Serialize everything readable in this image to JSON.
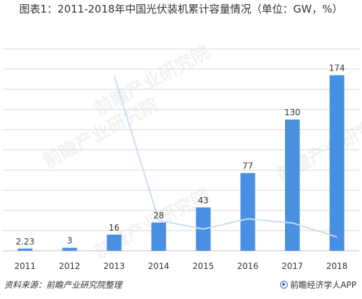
{
  "title": "图表1：2011-2018年中国光伏装机累计容量情况（单位：GW，%）",
  "source": "资料来源：前瞻产业研究院整理",
  "brand": "前瞻经济学人APP",
  "watermark": "前瞻产业研究院",
  "colors": {
    "bar": "#4a90e2",
    "line": "#c9ddf0",
    "grid": "#d9d9d9",
    "text": "#333333"
  },
  "chart_data": {
    "type": "bar",
    "categories": [
      "2011",
      "2012",
      "2013",
      "2014",
      "2015",
      "2016",
      "2017",
      "2018"
    ],
    "values": [
      2.23,
      3,
      16,
      28,
      43,
      77,
      130,
      174
    ],
    "value_labels": [
      "2.23",
      "3",
      "16",
      "28",
      "43",
      "77",
      "130",
      "174"
    ],
    "ylim": [
      0,
      200
    ],
    "grid": true,
    "line_series": {
      "values": [
        null,
        null,
        433,
        75,
        54,
        79,
        69,
        34
      ],
      "ylim": [
        0,
        500
      ]
    }
  }
}
